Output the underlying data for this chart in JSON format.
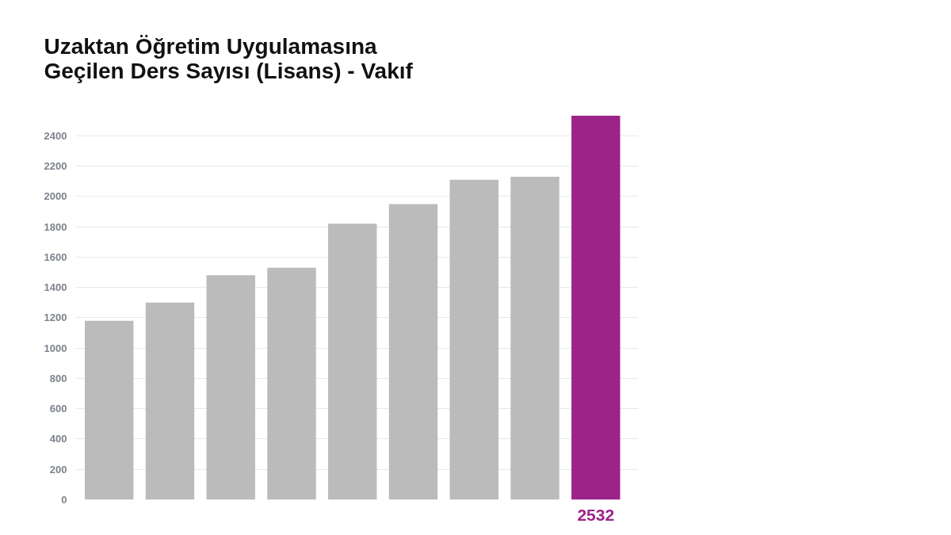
{
  "chart_data": {
    "type": "bar",
    "title": "Uzaktan Öğretim Uygulamasına Geçilen Ders Sayısı (Lisans) - Vakıf",
    "categories": [
      null,
      null,
      null,
      null,
      null,
      null,
      null,
      null,
      null
    ],
    "values": [
      1180,
      1300,
      1480,
      1530,
      1820,
      1950,
      2110,
      2130,
      2532
    ],
    "colors": [
      "#bbbbbb",
      "#bbbbbb",
      "#bbbbbb",
      "#bbbbbb",
      "#bbbbbb",
      "#bbbbbb",
      "#bbbbbb",
      "#bbbbbb",
      "#9c2387"
    ],
    "value_labels": [
      null,
      null,
      null,
      null,
      null,
      null,
      null,
      null,
      "2532"
    ],
    "ylim": [
      0,
      2540
    ],
    "yticks": [
      0,
      200,
      400,
      600,
      800,
      1000,
      1200,
      1400,
      1600,
      1800,
      2000,
      2200,
      2400
    ],
    "grid": "y",
    "tick_labels": "y"
  }
}
